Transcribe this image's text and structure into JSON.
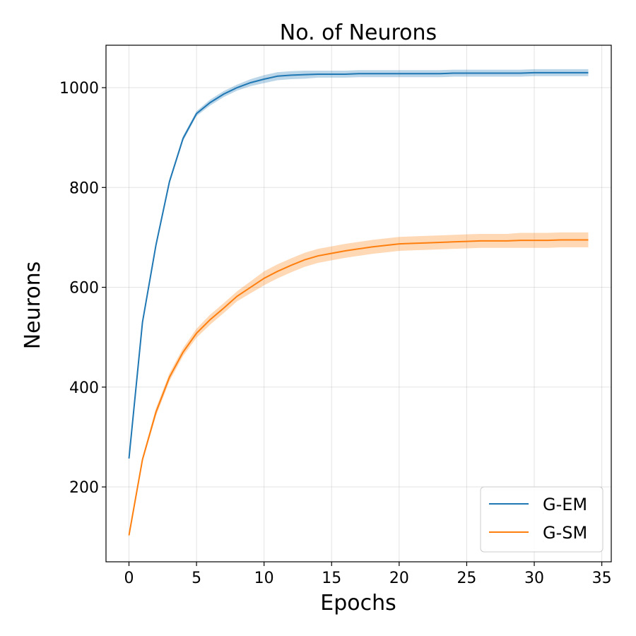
{
  "chart_data": {
    "type": "line",
    "title": "No. of Neurons",
    "xlabel": "Epochs",
    "ylabel": "Neurons",
    "xlim": [
      -1.7,
      35.7
    ],
    "ylim": [
      50,
      1085
    ],
    "xticks": [
      0,
      5,
      10,
      15,
      20,
      25,
      30,
      35
    ],
    "yticks": [
      200,
      400,
      600,
      800,
      1000
    ],
    "grid": true,
    "legend_position": "bottom-right",
    "x": [
      0,
      1,
      2,
      3,
      4,
      5,
      6,
      7,
      8,
      9,
      10,
      11,
      12,
      13,
      14,
      15,
      16,
      17,
      18,
      19,
      20,
      21,
      22,
      23,
      24,
      25,
      26,
      27,
      28,
      29,
      30,
      31,
      32,
      33,
      34
    ],
    "series": [
      {
        "name": "G-EM",
        "color": "#1f77b4",
        "values": [
          257,
          530,
          685,
          812,
          898,
          948,
          970,
          987,
          1000,
          1010,
          1017,
          1023,
          1025,
          1026,
          1027,
          1027,
          1027,
          1028,
          1028,
          1028,
          1028,
          1028,
          1028,
          1028,
          1029,
          1029,
          1029,
          1029,
          1029,
          1029,
          1030,
          1030,
          1030,
          1030,
          1030
        ],
        "band": [
          3,
          5,
          5,
          5,
          5,
          5,
          6,
          6,
          6,
          7,
          8,
          8,
          8,
          8,
          7,
          7,
          7,
          7,
          7,
          7,
          7,
          7,
          7,
          7,
          7,
          7,
          7,
          7,
          7,
          7,
          7,
          7,
          7,
          7,
          7
        ]
      },
      {
        "name": "G-SM",
        "color": "#ff7f0e",
        "values": [
          103,
          255,
          350,
          420,
          470,
          508,
          535,
          558,
          582,
          600,
          618,
          632,
          644,
          655,
          663,
          668,
          673,
          677,
          681,
          684,
          687,
          688,
          689,
          690,
          691,
          692,
          693,
          693,
          693,
          694,
          694,
          694,
          695,
          695,
          695
        ],
        "band": [
          3,
          5,
          8,
          8,
          8,
          9,
          10,
          10,
          10,
          12,
          14,
          14,
          14,
          14,
          14,
          14,
          14,
          14,
          14,
          14,
          14,
          14,
          14,
          14,
          14,
          14,
          14,
          14,
          14,
          15,
          15,
          15,
          15,
          15,
          15
        ]
      }
    ]
  }
}
